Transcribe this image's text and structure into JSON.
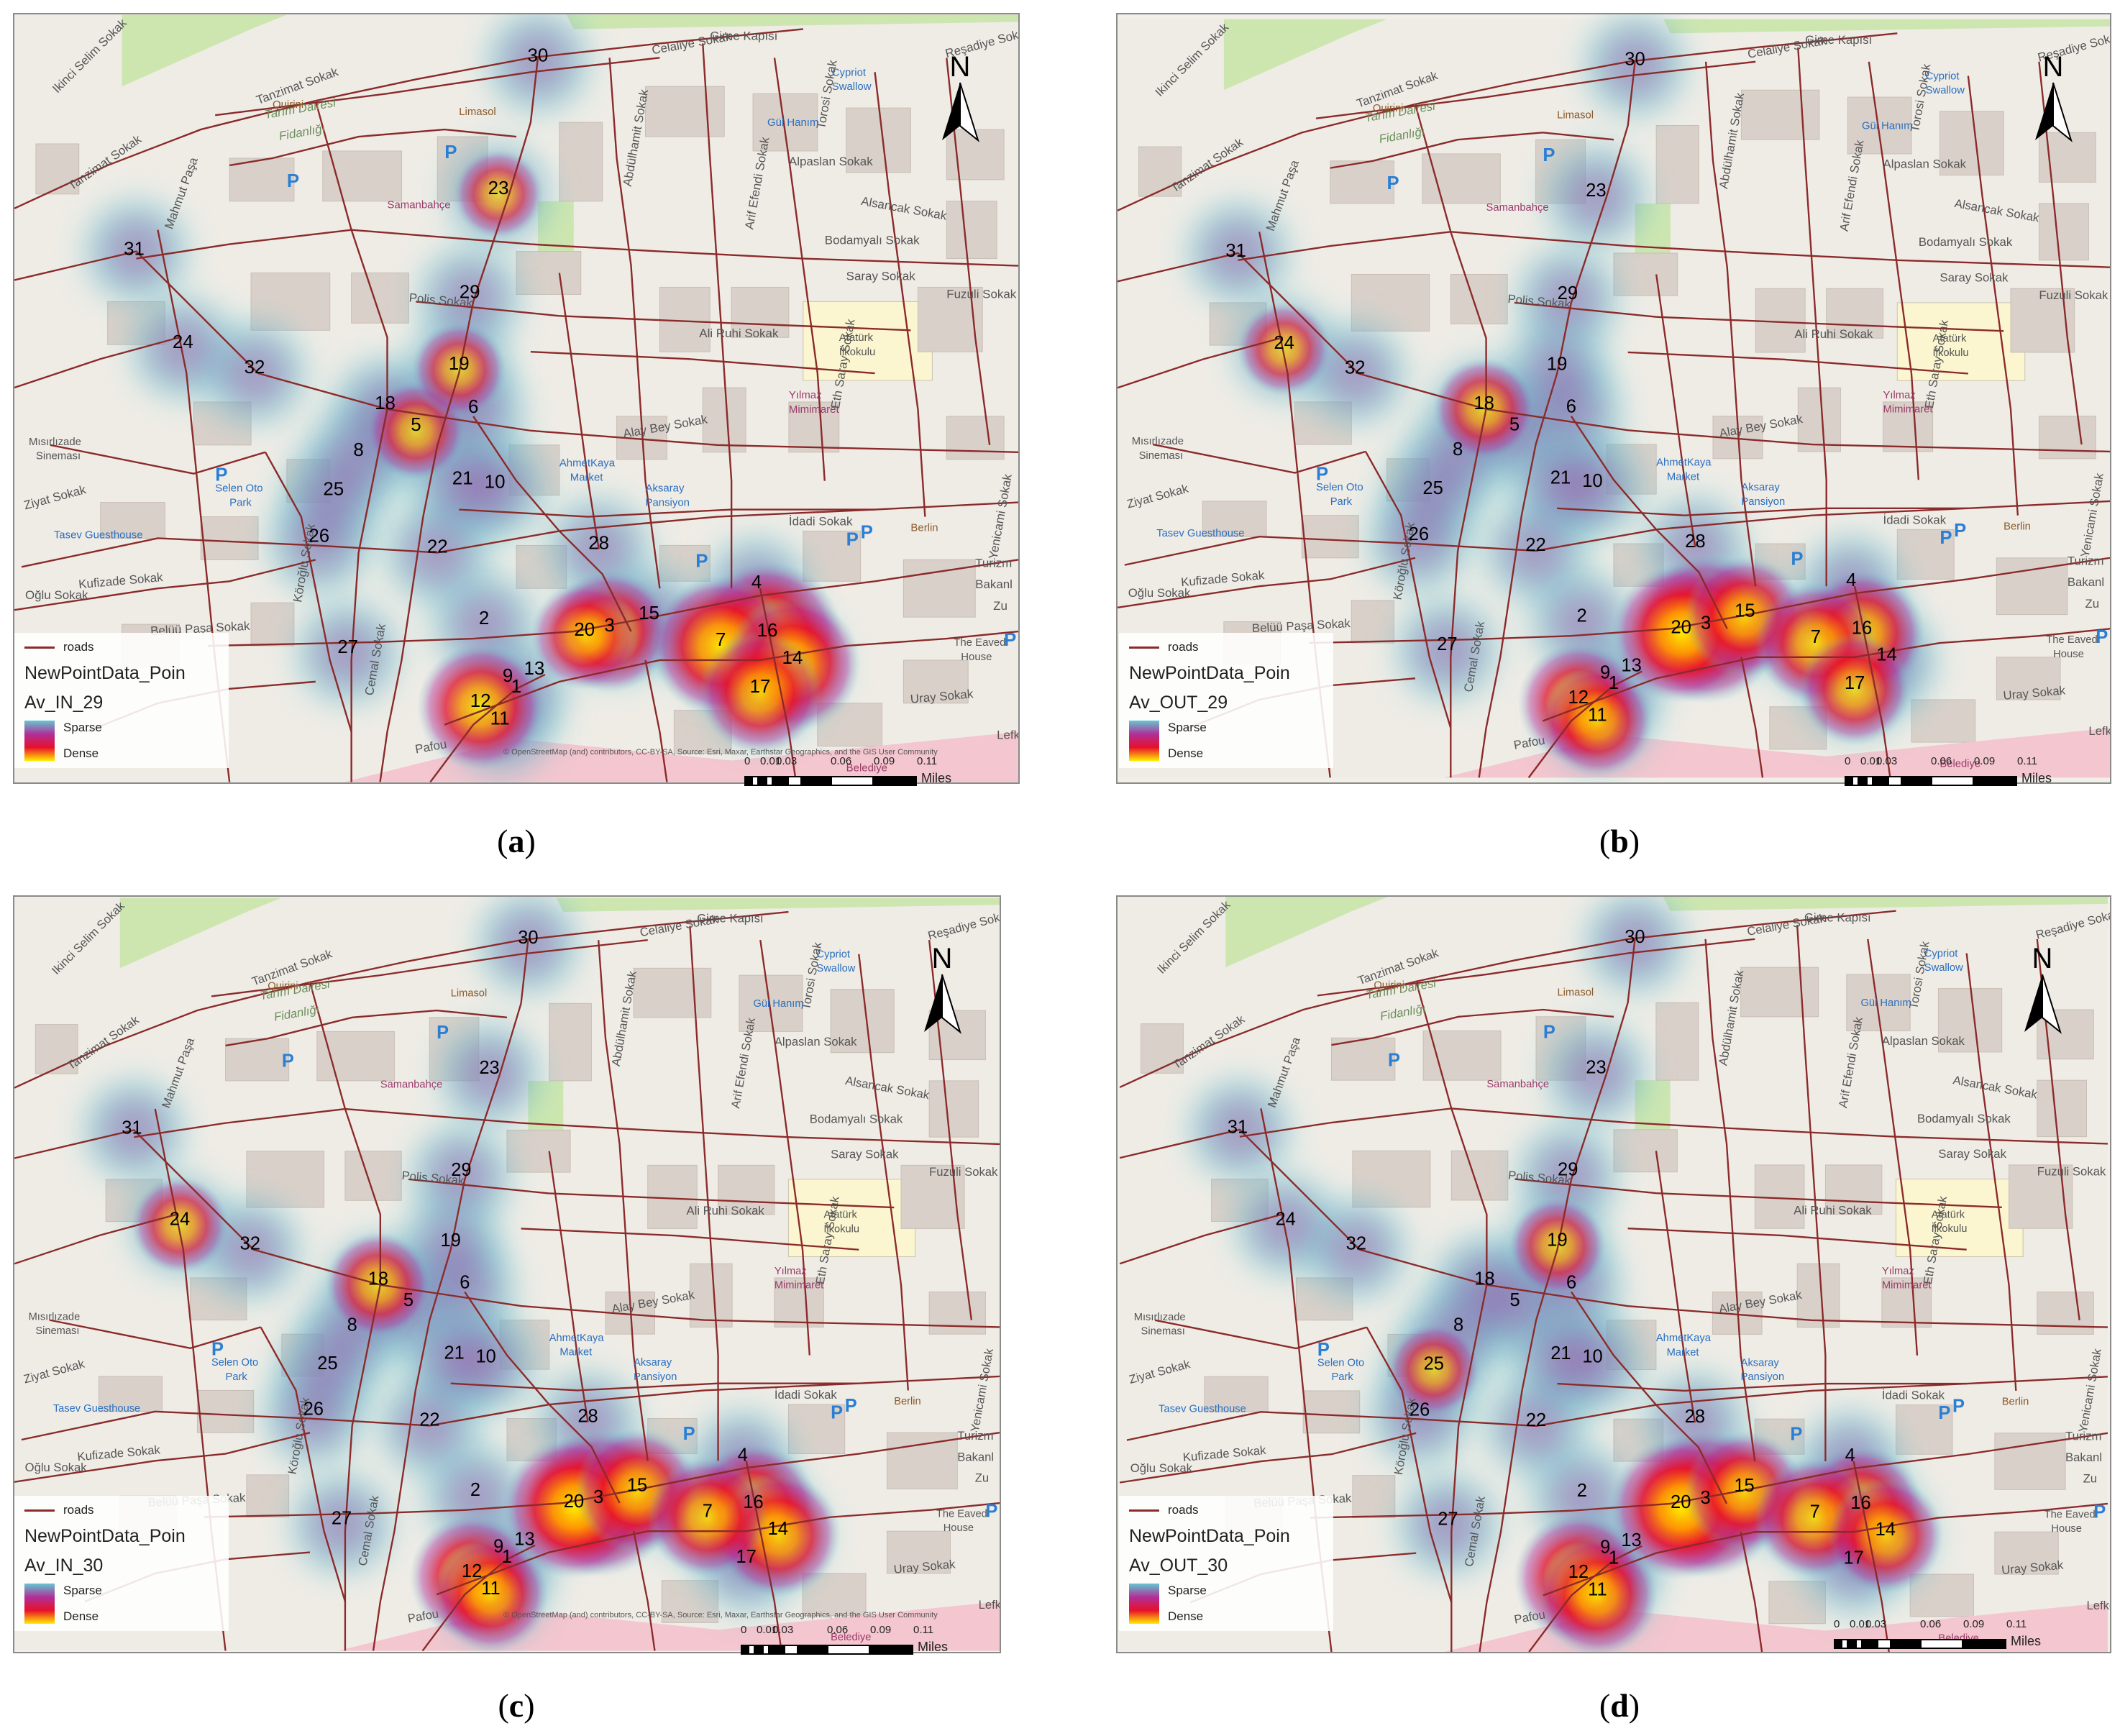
{
  "panels": [
    {
      "caption": "a",
      "legend_name": "NewPointData_Poin",
      "legend_field": "Av_IN_29",
      "hotspots": [
        {
          "point": "12",
          "intensity": 0.75
        },
        {
          "point": "3",
          "intensity": 0.7
        },
        {
          "point": "20",
          "intensity": 0.55
        },
        {
          "point": "16",
          "intensity": 1.0
        },
        {
          "point": "7",
          "intensity": 0.9
        },
        {
          "point": "14",
          "intensity": 0.85
        },
        {
          "point": "17",
          "intensity": 0.7
        },
        {
          "point": "5",
          "intensity": 0.45
        },
        {
          "point": "23",
          "intensity": 0.35
        },
        {
          "point": "19",
          "intensity": 0.4
        }
      ]
    },
    {
      "caption": "b",
      "legend_name": "NewPointData_Poin",
      "legend_field": "Av_OUT_29",
      "hotspots": [
        {
          "point": "3",
          "intensity": 1.0
        },
        {
          "point": "20",
          "intensity": 0.9
        },
        {
          "point": "15",
          "intensity": 0.7
        },
        {
          "point": "16",
          "intensity": 0.75
        },
        {
          "point": "7",
          "intensity": 0.7
        },
        {
          "point": "17",
          "intensity": 0.6
        },
        {
          "point": "12",
          "intensity": 0.7
        },
        {
          "point": "11",
          "intensity": 0.6
        },
        {
          "point": "18",
          "intensity": 0.5
        },
        {
          "point": "24",
          "intensity": 0.4
        }
      ]
    },
    {
      "caption": "c",
      "legend_name": "NewPointData_Poin",
      "legend_field": "Av_IN_30",
      "hotspots": [
        {
          "point": "3",
          "intensity": 1.0
        },
        {
          "point": "20",
          "intensity": 0.95
        },
        {
          "point": "15",
          "intensity": 0.75
        },
        {
          "point": "16",
          "intensity": 0.8
        },
        {
          "point": "14",
          "intensity": 0.75
        },
        {
          "point": "7",
          "intensity": 0.7
        },
        {
          "point": "12",
          "intensity": 0.75
        },
        {
          "point": "11",
          "intensity": 0.65
        },
        {
          "point": "18",
          "intensity": 0.55
        },
        {
          "point": "24",
          "intensity": 0.45
        }
      ]
    },
    {
      "caption": "d",
      "legend_name": "NewPointData_Poin",
      "legend_field": "Av_OUT_30",
      "hotspots": [
        {
          "point": "3",
          "intensity": 1.0
        },
        {
          "point": "20",
          "intensity": 0.95
        },
        {
          "point": "15",
          "intensity": 0.7
        },
        {
          "point": "16",
          "intensity": 0.75
        },
        {
          "point": "7",
          "intensity": 0.7
        },
        {
          "point": "14",
          "intensity": 0.65
        },
        {
          "point": "12",
          "intensity": 0.8
        },
        {
          "point": "11",
          "intensity": 0.7
        },
        {
          "point": "19",
          "intensity": 0.45
        },
        {
          "point": "25",
          "intensity": 0.4
        }
      ]
    }
  ],
  "legend": {
    "roads_label": "roads",
    "sparse_label": "Sparse",
    "dense_label": "Dense"
  },
  "north_label": "N",
  "scale": {
    "ticks": [
      "0",
      "0.01",
      "0.03",
      "0.06",
      "0.09",
      "0.11"
    ],
    "unit": "Miles"
  },
  "attribution": "© OpenStreetMap (and) contributors, CC-BY-SA, Source: Esri, Maxar, Earthstar Geographics, and the GIS User Community",
  "streets": {
    "ikinci_selim": "Ikinci Selim Sokak",
    "tanzimat1": "Tanzimat Sokak",
    "tanzimat2": "Tanzimat Sokak",
    "tarim": "Tarım Dairesi",
    "fidanligi": "Fidanlığı",
    "celaliye": "Celaliye Sokak",
    "alpaslan": "Alpaslan Sokak",
    "alsancak": "Alsancak Sokak",
    "bodamyali": "Bodamyalı Sokak",
    "saray": "Saray Sokak",
    "fuzuli": "Fuzuli Sokak",
    "aliruhi": "Ali Ruhi Sokak",
    "alaybey": "Alay Bey Sokak",
    "idadi": "İdadi Sokak",
    "polis": "Polis Sokak",
    "kufizade": "Kufizade Sokak",
    "belup": "Belüü Paşa Sokak",
    "uray": "Uray Sokak",
    "mahmut": "Mahmut Paşa",
    "ziyat": "Ziyat Sokak",
    "oglu": "Oğlu Sokak",
    "resadiye": "Reşadiye Sokak",
    "abdulhamit": "Abdülhamit Sokak",
    "arifefendi": "Arif Efendi Sokak",
    "ethisaray": "Eth Saray Sokak",
    "torosi": "Torosi Sokak",
    "yenicami": "Yenicami Sokak",
    "korolu": "Köroğlu Sokak",
    "cemal": "Cemal Sokak",
    "pafou": "Pafou",
    "lefkosa": "Lefkoşa",
    "girne": "Girne Kapısı",
    "turizm": "Turizm",
    "bakanl": "Bakanl",
    "zu": "Zu"
  },
  "places": {
    "quirini": "Quirini",
    "limasol": "Limasol",
    "samanbahce": "Samanbahçe",
    "cypriot": "Cypriot",
    "swallow": "Swallow",
    "gulhanim": "Gül Hanım",
    "ataturk": "Atatürk",
    "ilkokulu": "İlkokulu",
    "yilmaz": "Yılmaz",
    "mimimaret": "Mimimaret",
    "ahmetkaya": "AhmetKaya",
    "market": "Market",
    "aksaray": "Aksaray",
    "pansiyon": "Pansiyon",
    "berlin": "Berlin",
    "mısırlizade": "Mısırlızade",
    "sinemasi": "Sineması",
    "selen": "Selen Oto",
    "park": "Park",
    "tasev": "Tasev Guesthouse",
    "eaved": "The Eaved",
    "house": "House",
    "belediye": "Belediye"
  },
  "points": [
    {
      "id": "1"
    },
    {
      "id": "2"
    },
    {
      "id": "3"
    },
    {
      "id": "4"
    },
    {
      "id": "5"
    },
    {
      "id": "6"
    },
    {
      "id": "7"
    },
    {
      "id": "8"
    },
    {
      "id": "9"
    },
    {
      "id": "10"
    },
    {
      "id": "11"
    },
    {
      "id": "12"
    },
    {
      "id": "13"
    },
    {
      "id": "14"
    },
    {
      "id": "15"
    },
    {
      "id": "16"
    },
    {
      "id": "17"
    },
    {
      "id": "18"
    },
    {
      "id": "19"
    },
    {
      "id": "20"
    },
    {
      "id": "21"
    },
    {
      "id": "22"
    },
    {
      "id": "23"
    },
    {
      "id": "24"
    },
    {
      "id": "25"
    },
    {
      "id": "26"
    },
    {
      "id": "27"
    },
    {
      "id": "28"
    },
    {
      "id": "29"
    },
    {
      "id": "30"
    },
    {
      "id": "31"
    },
    {
      "id": "32"
    }
  ],
  "colors": {
    "road": "#8b2a2a",
    "sparse": "#63c7d1",
    "mid": "#b0309a",
    "dense_red": "#e8102a",
    "dense_yellow": "#ffee00",
    "building": "#d9d0c9",
    "park_green": "#cde6b0",
    "school": "#fbf6cf"
  }
}
